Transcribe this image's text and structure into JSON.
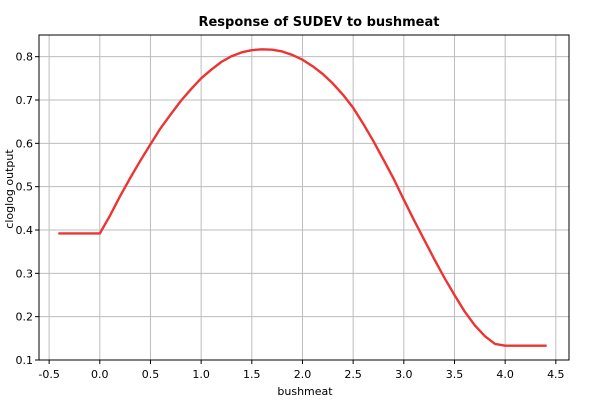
{
  "chart_data": {
    "type": "line",
    "title": "Response of SUDEV to bushmeat",
    "xlabel": "bushmeat",
    "ylabel": "cloglog output",
    "xlim": [
      -0.6,
      4.63
    ],
    "ylim": [
      0.1,
      0.85
    ],
    "x_ticks": [
      -0.5,
      0.0,
      0.5,
      1.0,
      1.5,
      2.0,
      2.5,
      3.0,
      3.5,
      4.0,
      4.5
    ],
    "x_tick_labels": [
      "-0.5",
      "0.0",
      "0.5",
      "1.0",
      "1.5",
      "2.0",
      "2.5",
      "3.0",
      "3.5",
      "4.0",
      "4.5"
    ],
    "y_ticks": [
      0.1,
      0.2,
      0.3,
      0.4,
      0.5,
      0.6,
      0.7,
      0.8
    ],
    "y_tick_labels": [
      "0.1",
      "0.2",
      "0.3",
      "0.4",
      "0.5",
      "0.6",
      "0.7",
      "0.8"
    ],
    "grid": true,
    "legend": "none",
    "series": [
      {
        "color": "#ee3333",
        "x": [
          -0.4,
          -0.2,
          0.0,
          0.1,
          0.2,
          0.3,
          0.4,
          0.5,
          0.6,
          0.7,
          0.8,
          0.9,
          1.0,
          1.1,
          1.2,
          1.3,
          1.4,
          1.5,
          1.6,
          1.7,
          1.8,
          1.9,
          2.0,
          2.1,
          2.2,
          2.3,
          2.4,
          2.5,
          2.6,
          2.7,
          2.8,
          2.9,
          3.0,
          3.1,
          3.2,
          3.3,
          3.4,
          3.5,
          3.6,
          3.7,
          3.8,
          3.9,
          4.0,
          4.2,
          4.4
        ],
        "y": [
          0.392,
          0.392,
          0.392,
          0.433,
          0.478,
          0.52,
          0.56,
          0.598,
          0.635,
          0.667,
          0.698,
          0.725,
          0.75,
          0.77,
          0.788,
          0.801,
          0.81,
          0.815,
          0.817,
          0.816,
          0.812,
          0.804,
          0.793,
          0.778,
          0.76,
          0.738,
          0.712,
          0.682,
          0.645,
          0.605,
          0.562,
          0.518,
          0.47,
          0.423,
          0.378,
          0.333,
          0.29,
          0.25,
          0.212,
          0.18,
          0.155,
          0.137,
          0.133,
          0.133,
          0.133
        ]
      }
    ],
    "colors": {
      "axes": "#000000",
      "grid": "#bdbdbd",
      "line": "#ee3333",
      "background": "#ffffff"
    }
  }
}
